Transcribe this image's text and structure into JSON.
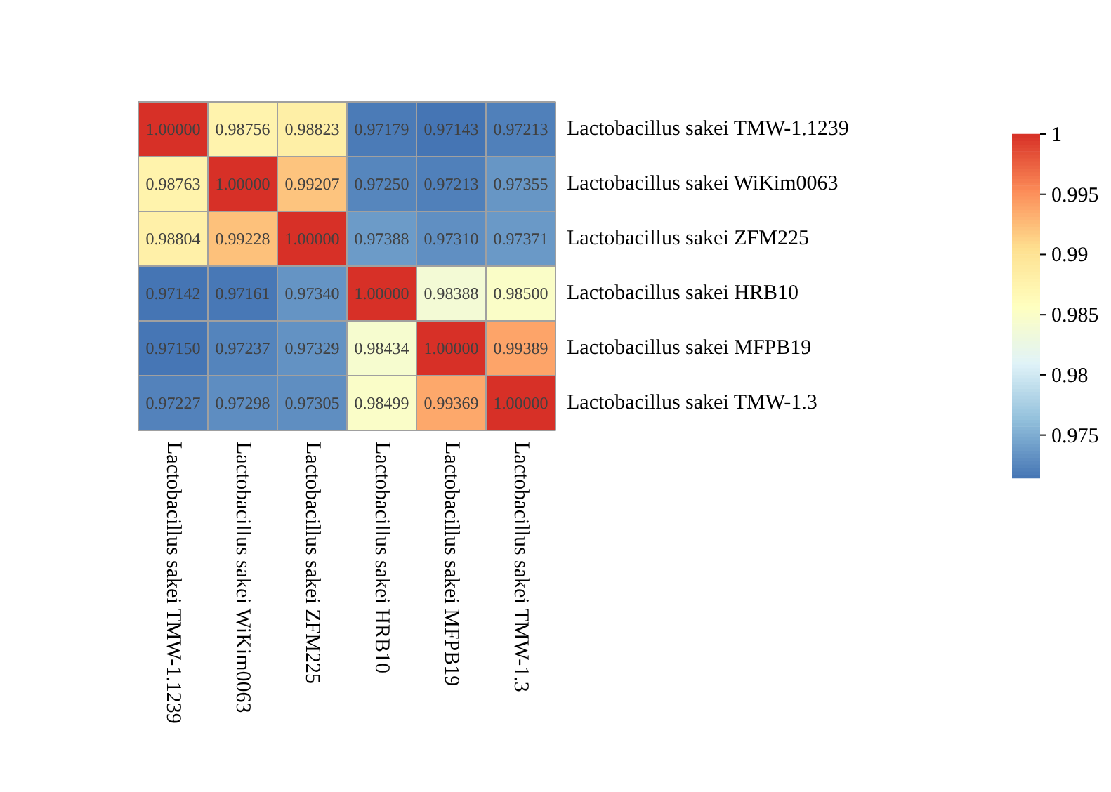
{
  "chart_data": {
    "type": "heatmap",
    "categories": [
      "Lactobacillus sakei TMW-1.1239",
      "Lactobacillus sakei WiKim0063",
      "Lactobacillus sakei ZFM225",
      "Lactobacillus sakei HRB10",
      "Lactobacillus sakei MFPB19",
      "Lactobacillus sakei TMW-1.3"
    ],
    "y_categories": [
      "Lactobacillus sakei TMW-1.1239",
      "Lactobacillus sakei WiKim0063",
      "Lactobacillus sakei ZFM225",
      "Lactobacillus sakei HRB10",
      "Lactobacillus sakei MFPB19",
      "Lactobacillus sakei TMW-1.3"
    ],
    "cells": [
      [
        1.0,
        0.98756,
        0.98823,
        0.97179,
        0.97143,
        0.97213
      ],
      [
        0.98763,
        1.0,
        0.99207,
        0.9725,
        0.97213,
        0.97355
      ],
      [
        0.98804,
        0.99228,
        1.0,
        0.97388,
        0.9731,
        0.97371
      ],
      [
        0.97142,
        0.97161,
        0.9734,
        1.0,
        0.98388,
        0.985
      ],
      [
        0.9715,
        0.97237,
        0.97329,
        0.98434,
        1.0,
        0.99389
      ],
      [
        0.97227,
        0.97298,
        0.97305,
        0.98499,
        0.99369,
        1.0
      ]
    ],
    "cell_labels": [
      [
        "1.00000",
        "0.98756",
        "0.98823",
        "0.97179",
        "0.97143",
        "0.97213"
      ],
      [
        "0.98763",
        "1.00000",
        "0.99207",
        "0.97250",
        "0.97213",
        "0.97355"
      ],
      [
        "0.98804",
        "0.99228",
        "1.00000",
        "0.97388",
        "0.97310",
        "0.97371"
      ],
      [
        "0.97142",
        "0.97161",
        "0.97340",
        "1.00000",
        "0.98388",
        "0.98500"
      ],
      [
        "0.97150",
        "0.97237",
        "0.97329",
        "0.98434",
        "1.00000",
        "0.99389"
      ],
      [
        "0.97227",
        "0.97298",
        "0.97305",
        "0.98499",
        "0.99369",
        "1.00000"
      ]
    ],
    "clim": [
      0.97142,
      1.0
    ],
    "cticks": [
      {
        "value": 0.975,
        "label": "0.975"
      },
      {
        "value": 0.98,
        "label": "0.98"
      },
      {
        "value": 0.985,
        "label": "0.985"
      },
      {
        "value": 0.99,
        "label": "0.99"
      },
      {
        "value": 0.995,
        "label": "0.995"
      },
      {
        "value": 1,
        "label": "1"
      }
    ]
  }
}
